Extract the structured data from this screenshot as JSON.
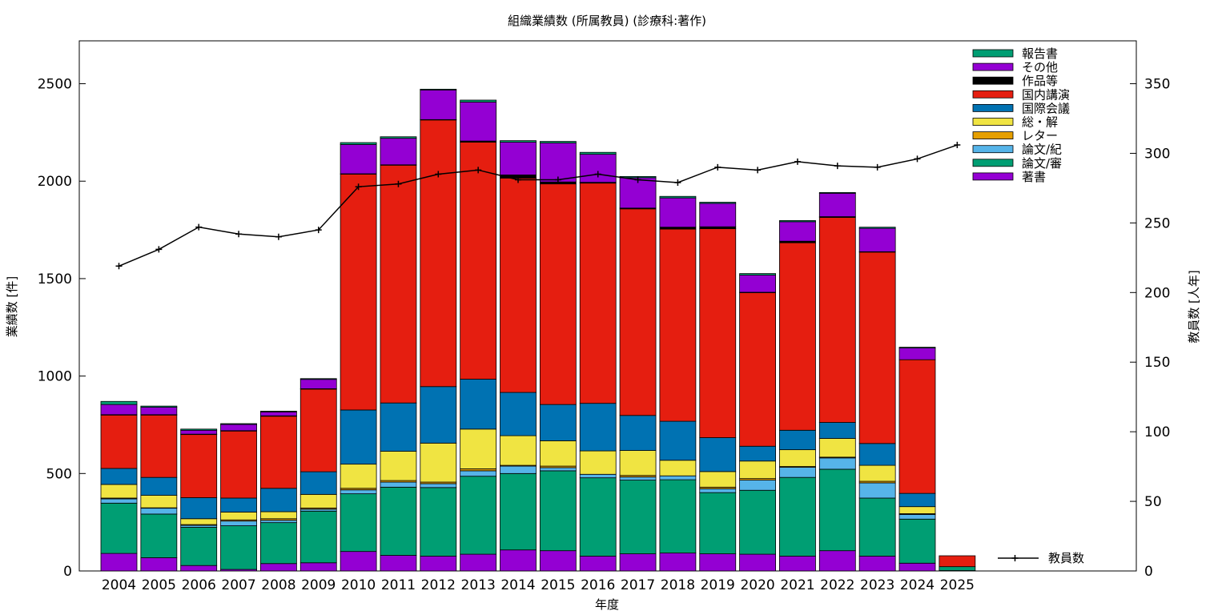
{
  "chart_data": {
    "type": "bar",
    "title": "組織業績数 (所属教員) (診療科:著作)",
    "xlabel": "年度",
    "ylabel": "業績数 [件]",
    "y2label": "教員数 [人年]",
    "ylim": [
      0,
      2720
    ],
    "y2lim": [
      0,
      380.8
    ],
    "yticks": [
      0,
      500,
      1000,
      1500,
      2000,
      2500
    ],
    "y2ticks": [
      0,
      50,
      100,
      150,
      200,
      250,
      300,
      350
    ],
    "legend_position": "top-right",
    "categories": [
      "2004",
      "2005",
      "2006",
      "2007",
      "2008",
      "2009",
      "2010",
      "2011",
      "2012",
      "2013",
      "2014",
      "2015",
      "2016",
      "2017",
      "2018",
      "2019",
      "2020",
      "2021",
      "2022",
      "2023",
      "2024",
      "2025"
    ],
    "series": [
      {
        "name": "著書",
        "color": "#9400d3",
        "values": [
          90,
          68,
          28,
          8,
          38,
          42,
          100,
          80,
          76,
          86,
          108,
          104,
          76,
          88,
          92,
          88,
          86,
          76,
          104,
          76,
          40,
          2
        ]
      },
      {
        "name": "論文/審",
        "color": "#009e73",
        "values": [
          258,
          224,
          196,
          224,
          210,
          265,
          296,
          350,
          352,
          400,
          392,
          410,
          402,
          378,
          376,
          314,
          328,
          404,
          418,
          298,
          226,
          20
        ]
      },
      {
        "name": "論文/紀",
        "color": "#56b4e9",
        "values": [
          22,
          30,
          10,
          24,
          12,
          10,
          20,
          26,
          20,
          28,
          38,
          16,
          18,
          16,
          20,
          20,
          52,
          52,
          58,
          78,
          24,
          0
        ]
      },
      {
        "name": "レター",
        "color": "#e69f00",
        "values": [
          4,
          2,
          4,
          6,
          8,
          6,
          8,
          8,
          8,
          10,
          4,
          8,
          0,
          8,
          0,
          8,
          8,
          4,
          4,
          8,
          4,
          0
        ]
      },
      {
        "name": "総・解",
        "color": "#f0e442",
        "values": [
          70,
          64,
          30,
          40,
          36,
          70,
          124,
          150,
          200,
          204,
          152,
          130,
          120,
          128,
          80,
          80,
          90,
          86,
          96,
          82,
          36,
          0
        ]
      },
      {
        "name": "国際会議",
        "color": "#0072b2",
        "values": [
          82,
          92,
          108,
          72,
          120,
          116,
          278,
          248,
          290,
          256,
          222,
          186,
          244,
          180,
          200,
          174,
          76,
          100,
          82,
          112,
          68,
          0
        ]
      },
      {
        "name": "国内講演",
        "color": "#e51e10",
        "values": [
          274,
          320,
          324,
          344,
          370,
          424,
          1210,
          1220,
          1368,
          1216,
          1100,
          1132,
          1130,
          1060,
          986,
          1072,
          788,
          962,
          1052,
          982,
          686,
          56
        ]
      },
      {
        "name": "作品等",
        "color": "#000000",
        "values": [
          2,
          2,
          2,
          2,
          2,
          2,
          2,
          2,
          2,
          6,
          16,
          10,
          4,
          4,
          10,
          10,
          2,
          8,
          4,
          2,
          0,
          0
        ]
      },
      {
        "name": "その他",
        "color": "#9400d3",
        "values": [
          52,
          38,
          20,
          32,
          20,
          48,
          150,
          136,
          152,
          200,
          168,
          200,
          144,
          156,
          150,
          120,
          88,
          100,
          120,
          120,
          60,
          0
        ]
      },
      {
        "name": "報告書",
        "color": "#009e73",
        "values": [
          16,
          6,
          6,
          4,
          4,
          4,
          10,
          8,
          4,
          10,
          8,
          8,
          10,
          6,
          8,
          6,
          8,
          6,
          4,
          6,
          4,
          0
        ]
      }
    ],
    "line": {
      "name": "教員数",
      "color": "#000000",
      "axis": "right",
      "values": [
        219,
        231,
        247,
        242,
        240,
        245,
        276,
        278,
        285,
        288,
        281,
        281,
        285,
        281,
        279,
        290,
        288,
        294,
        291,
        290,
        296,
        306
      ]
    }
  }
}
